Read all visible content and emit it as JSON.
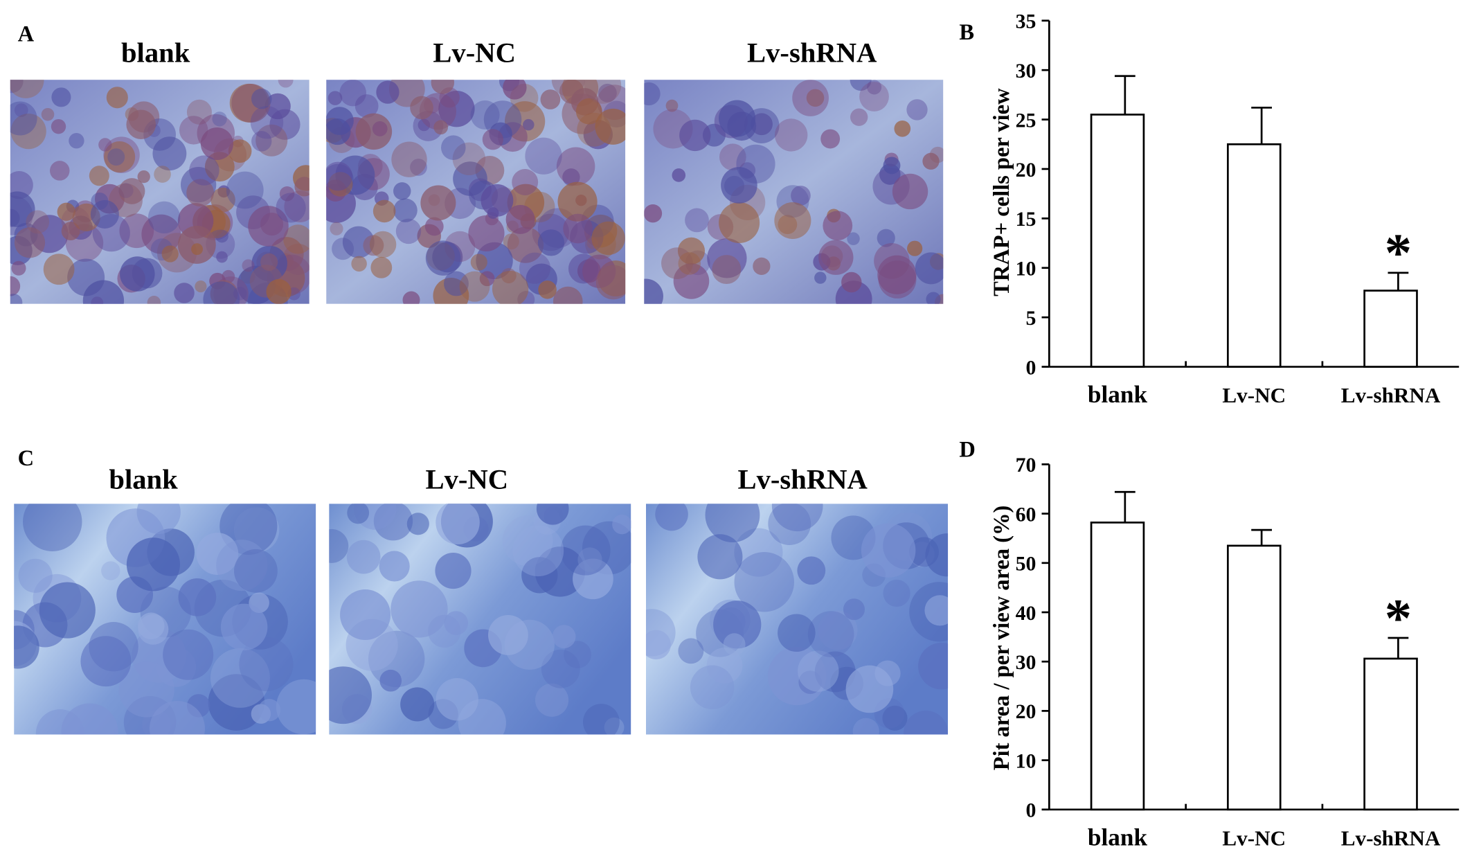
{
  "panels": [
    {
      "label": "A",
      "images": [
        "blank",
        "Lv-NC",
        "Lv-shRNA"
      ]
    },
    {
      "label": "C",
      "images": [
        "blank",
        "Lv-NC",
        "Lv-shRNA"
      ]
    }
  ],
  "chart_data": [
    {
      "type": "bar",
      "panel_label": "B",
      "ylabel": "TRAP+ cells per view",
      "categories": [
        "blank",
        "Lv-NC",
        "Lv-shRNA"
      ],
      "values": [
        25.5,
        22.5,
        7.7
      ],
      "errors": [
        3.9,
        3.7,
        1.8
      ],
      "annotation": "*",
      "color": "#ffffff",
      "edgecolor": "#000000",
      "ylim": [
        0,
        35
      ],
      "yticks": [
        0,
        5,
        10,
        15,
        20,
        25,
        30,
        35
      ],
      "grid": false
    },
    {
      "type": "bar",
      "panel_label": "D",
      "ylabel": "Pit area / per view area (%)",
      "categories": [
        "blank",
        "Lv-NC",
        "Lv-shRNA"
      ],
      "values": [
        58.2,
        53.5,
        30.6
      ],
      "errors": [
        6.2,
        3.2,
        4.2
      ],
      "annotation": "*",
      "color": "#ffffff",
      "edgecolor": "#000000",
      "ylim": [
        0,
        70
      ],
      "yticks": [
        0,
        10,
        20,
        30,
        40,
        50,
        60,
        70
      ],
      "grid": false
    }
  ]
}
